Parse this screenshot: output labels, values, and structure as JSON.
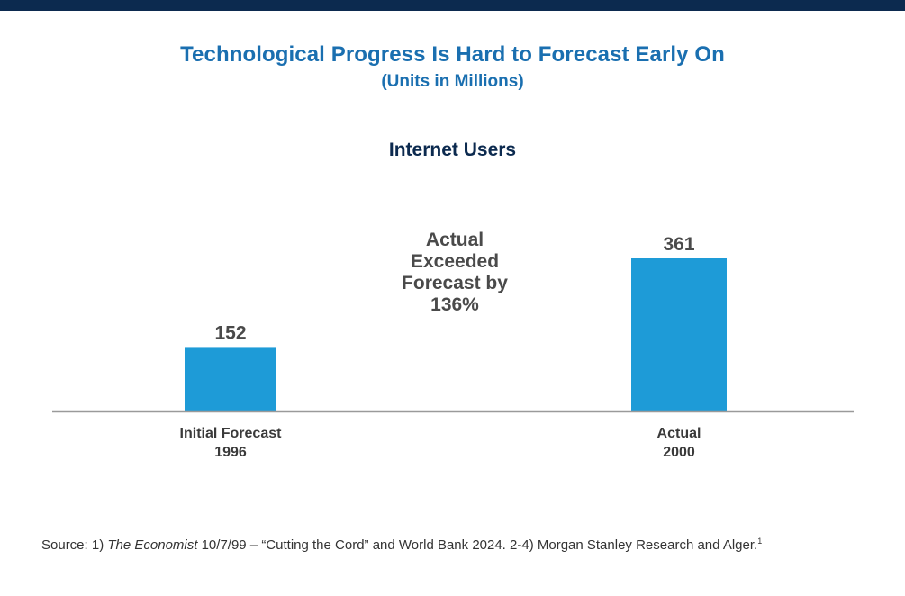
{
  "header": {
    "title": "Technological Progress Is Hard to Forecast Early On",
    "subtitle": "(Units in Millions)"
  },
  "colors": {
    "top_bar": "#0c2a4f",
    "title": "#1a6fb0",
    "bar": "#1e9bd7",
    "axis": "#9a9a9a"
  },
  "chart_data": {
    "type": "bar",
    "title": "Internet Users",
    "categories": [
      {
        "line1": "Initial Forecast",
        "line2": "1996"
      },
      {
        "line1": "Actual",
        "line2": "2000"
      }
    ],
    "values": [
      152,
      361
    ],
    "value_labels": [
      "152",
      "361"
    ],
    "ylim": [
      0,
      400
    ],
    "grid": false,
    "annotation": [
      "Actual",
      "Exceeded",
      "Forecast by",
      "136%"
    ]
  },
  "footer": {
    "source_prefix": "Source: 1) ",
    "source_italic": "The Economist",
    "source_rest": " 10/7/99 – “Cutting the Cord” and World Bank 2024. 2-4) Morgan Stanley Research and Alger.",
    "source_sup": "1"
  }
}
